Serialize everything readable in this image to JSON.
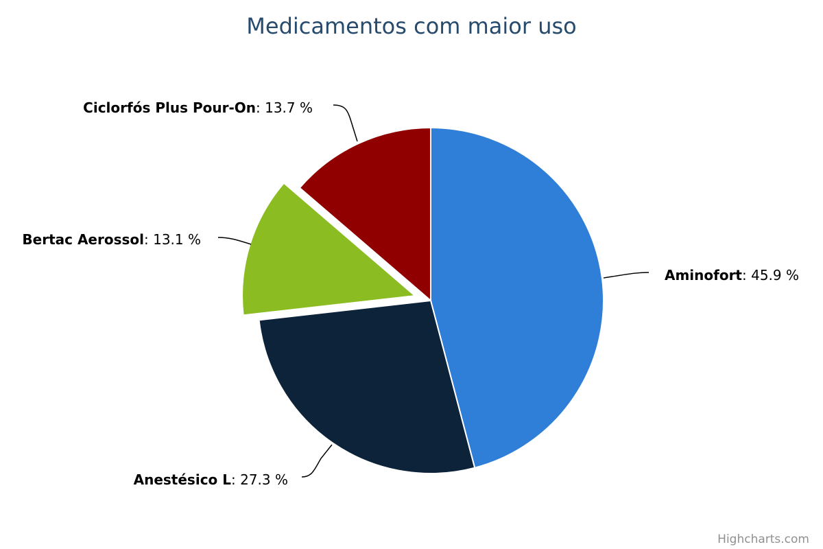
{
  "chart_data": {
    "type": "pie",
    "title": "Medicamentos com maior uso",
    "unit": "%",
    "series": [
      {
        "slices": [
          {
            "name": "Aminofort",
            "value": 45.9,
            "color": "#2f7ed8"
          },
          {
            "name": "Anestésico L",
            "value": 27.3,
            "color": "#0d233a"
          },
          {
            "name": "Bertac Aerossol",
            "value": 13.1,
            "color": "#8bbc21",
            "sliced": true
          },
          {
            "name": "Ciclorfós Plus Pour-On",
            "value": 13.7,
            "color": "#910000"
          }
        ]
      }
    ],
    "data_labels": [
      "Aminofort: 45.9 %",
      "Anestésico L: 27.3 %",
      "Bertac Aerossol: 13.1 %",
      "Ciclorfós Plus Pour-On: 13.7 %"
    ]
  },
  "credits": "Highcharts.com"
}
